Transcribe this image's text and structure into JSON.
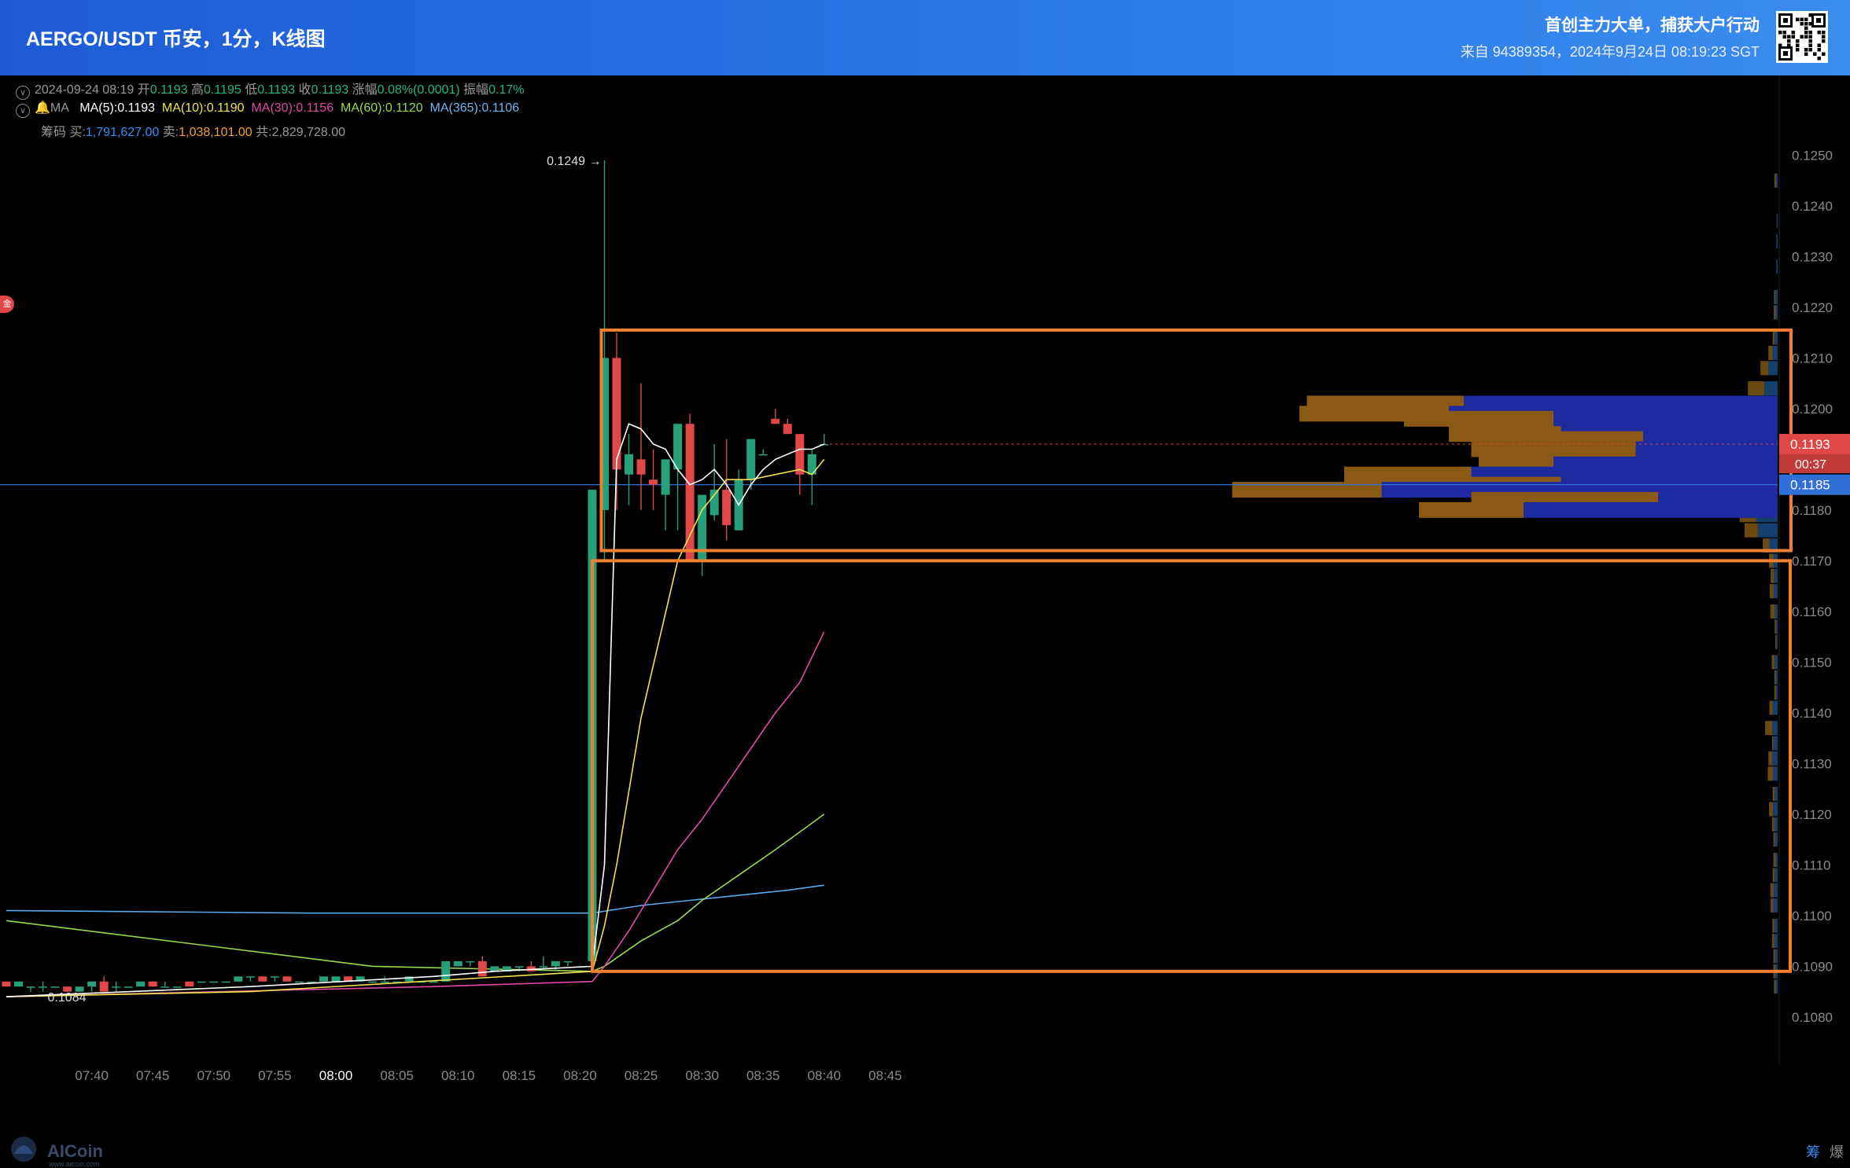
{
  "header": {
    "title": "AERGO/USDT 币安，1分，K线图",
    "promo": "首创主力大单，捕获大户行动",
    "source": "来自 94389354，2024年9月24日 08:19:23 SGT"
  },
  "ohlc": {
    "date": "2024-09-24 08:19",
    "open_label": "开",
    "open": "0.1193",
    "high_label": "高",
    "high": "0.1195",
    "low_label": "低",
    "low": "0.1193",
    "close_label": "收",
    "close": "0.1193",
    "change_label": "涨幅",
    "change": "0.08%(0.0001)",
    "amp_label": "振幅",
    "amp": "0.17%"
  },
  "ma_row": {
    "label": "MA",
    "ma5": "MA(5):0.1193",
    "ma10": "MA(10):0.1190",
    "ma30": "MA(30):0.1156",
    "ma60": "MA(60):0.1120",
    "ma365": "MA(365):0.1106"
  },
  "chips_row": {
    "label": "筹码",
    "buy_label": "买:",
    "buy": "1,791,627.00",
    "sell_label": "卖:",
    "sell": "1,038,101.00",
    "total_label": "共:",
    "total": "2,829,728.00"
  },
  "badge": "金",
  "annotations": {
    "high_label": "0.1249 →",
    "low_label": "0.1084"
  },
  "price_tags": {
    "last": "0.1193",
    "countdown": "00:37",
    "crosshair": "0.1185"
  },
  "footer": {
    "brand": "AICoin",
    "brand_sub": "www.aicoin.com",
    "chip_btn": "筹",
    "liq_btn": "爆"
  },
  "colors": {
    "up": "#26a17b",
    "down": "#e04848",
    "ma5": "#ffffff",
    "ma10": "#f2e24d",
    "ma30": "#e24aa8",
    "ma60": "#9bd84b",
    "ma365": "#5aa8ec",
    "box": "#f08030",
    "vp_buy": "#1e2aa0",
    "vp_sell": "#8a5a14",
    "vp_right_buy": "#14406e",
    "vp_right_sell": "#6b4a12"
  },
  "chart_data": {
    "type": "candlestick",
    "symbol": "AERGO/USDT",
    "interval": "1分",
    "y_ticks": [
      "0.1250",
      "0.1240",
      "0.1230",
      "0.1220",
      "0.1210",
      "0.1200",
      "0.1190",
      "0.1180",
      "0.1170",
      "0.1160",
      "0.1150",
      "0.1140",
      "0.1130",
      "0.1120",
      "0.1110",
      "0.1100",
      "0.1090",
      "0.1080"
    ],
    "x_ticks": [
      "07:40",
      "07:45",
      "07:50",
      "07:55",
      "08:00",
      "08:05",
      "08:10",
      "08:15",
      "08:20",
      "08:25",
      "08:30",
      "08:35",
      "08:40",
      "08:45"
    ],
    "ylim": [
      0.10775,
      0.12558
    ],
    "time_start_minute": 7,
    "candles": [
      [
        0.1087,
        0.1087,
        0.1086,
        0.1086
      ],
      [
        0.1086,
        0.1087,
        0.1086,
        0.1087
      ],
      [
        0.1086,
        0.1086,
        0.1085,
        0.1086
      ],
      [
        0.1086,
        0.1087,
        0.1085,
        0.1086
      ],
      [
        0.1086,
        0.1086,
        0.1086,
        0.1086
      ],
      [
        0.1086,
        0.1086,
        0.1085,
        0.1085
      ],
      [
        0.1085,
        0.1086,
        0.1085,
        0.1086
      ],
      [
        0.1086,
        0.1087,
        0.1085,
        0.1087
      ],
      [
        0.1087,
        0.1088,
        0.1085,
        0.1085
      ],
      [
        0.1086,
        0.1087,
        0.1085,
        0.1086
      ],
      [
        0.1086,
        0.1086,
        0.1086,
        0.1086
      ],
      [
        0.1086,
        0.1087,
        0.1086,
        0.1087
      ],
      [
        0.1087,
        0.1087,
        0.1086,
        0.1086
      ],
      [
        0.1086,
        0.1087,
        0.1086,
        0.1086
      ],
      [
        0.1086,
        0.1086,
        0.1086,
        0.1086
      ],
      [
        0.1087,
        0.1087,
        0.1086,
        0.1086
      ],
      [
        0.1087,
        0.1087,
        0.1087,
        0.1087
      ],
      [
        0.1087,
        0.1087,
        0.1087,
        0.1087
      ],
      [
        0.1087,
        0.1087,
        0.1087,
        0.1087
      ],
      [
        0.1087,
        0.1088,
        0.1087,
        0.1088
      ],
      [
        0.1088,
        0.1088,
        0.1087,
        0.1088
      ],
      [
        0.1088,
        0.1088,
        0.1087,
        0.1087
      ],
      [
        0.1088,
        0.1088,
        0.1087,
        0.1088
      ],
      [
        0.1088,
        0.1088,
        0.1087,
        0.1087
      ],
      [
        0.1087,
        0.1087,
        0.1087,
        0.1087
      ],
      [
        0.1087,
        0.1087,
        0.1087,
        0.1087
      ],
      [
        0.1087,
        0.1088,
        0.1087,
        0.1088
      ],
      [
        0.1087,
        0.1088,
        0.1087,
        0.1088
      ],
      [
        0.1088,
        0.1088,
        0.1087,
        0.1087
      ],
      [
        0.1087,
        0.1088,
        0.1087,
        0.1088
      ],
      [
        0.1087,
        0.1087,
        0.1087,
        0.1087
      ],
      [
        0.1087,
        0.1088,
        0.1087,
        0.1087
      ],
      [
        0.1087,
        0.1087,
        0.1087,
        0.1087
      ],
      [
        0.1087,
        0.1088,
        0.1087,
        0.1088
      ],
      [
        0.1087,
        0.1087,
        0.1087,
        0.1087
      ],
      [
        0.1087,
        0.1087,
        0.1087,
        0.1087
      ],
      [
        0.1087,
        0.1091,
        0.1087,
        0.1091
      ],
      [
        0.109,
        0.1091,
        0.109,
        0.1091
      ],
      [
        0.1091,
        0.1091,
        0.109,
        0.1091
      ],
      [
        0.1091,
        0.1092,
        0.1088,
        0.1088
      ],
      [
        0.1089,
        0.109,
        0.1089,
        0.109
      ],
      [
        0.1089,
        0.109,
        0.1089,
        0.109
      ],
      [
        0.109,
        0.109,
        0.1089,
        0.109
      ],
      [
        0.109,
        0.1091,
        0.1089,
        0.1089
      ],
      [
        0.109,
        0.1092,
        0.1089,
        0.109
      ],
      [
        0.109,
        0.1091,
        0.1089,
        0.1091
      ],
      [
        0.1091,
        0.1091,
        0.109,
        0.1091
      ],
      [
        0.109,
        0.109,
        0.109,
        0.109
      ],
      [
        0.1091,
        0.1184,
        0.109,
        0.1184
      ],
      [
        0.118,
        0.1249,
        0.117,
        0.121
      ],
      [
        0.121,
        0.1215,
        0.118,
        0.1188
      ],
      [
        0.1187,
        0.1195,
        0.1181,
        0.1191
      ],
      [
        0.119,
        0.1205,
        0.118,
        0.1187
      ],
      [
        0.1186,
        0.1192,
        0.118,
        0.1185
      ],
      [
        0.1183,
        0.119,
        0.1176,
        0.119
      ],
      [
        0.1188,
        0.1197,
        0.1176,
        0.1197
      ],
      [
        0.1197,
        0.1199,
        0.117,
        0.117
      ],
      [
        0.117,
        0.1183,
        0.1167,
        0.1183
      ],
      [
        0.1179,
        0.1193,
        0.1178,
        0.1184
      ],
      [
        0.1184,
        0.1194,
        0.1174,
        0.1177
      ],
      [
        0.1176,
        0.1188,
        0.1176,
        0.1186
      ],
      [
        0.1186,
        0.1193,
        0.1184,
        0.1194
      ],
      [
        0.1191,
        0.1192,
        0.1191,
        0.1191
      ],
      [
        0.1198,
        0.12,
        0.1197,
        0.1197
      ],
      [
        0.1197,
        0.1198,
        0.1195,
        0.1195
      ],
      [
        0.1195,
        0.1195,
        0.1183,
        0.1187
      ],
      [
        0.1187,
        0.1192,
        0.1181,
        0.1191
      ],
      [
        0.1193,
        0.1195,
        0.1193,
        0.1193
      ]
    ],
    "ma5": [
      [
        0,
        0.1084
      ],
      [
        20,
        0.1086
      ],
      [
        35,
        0.1088
      ],
      [
        40,
        0.1089
      ],
      [
        48,
        0.109
      ],
      [
        49,
        0.111
      ],
      [
        50,
        0.119
      ],
      [
        51,
        0.1197
      ],
      [
        52,
        0.1196
      ],
      [
        53,
        0.1193
      ],
      [
        54,
        0.1192
      ],
      [
        55,
        0.1188
      ],
      [
        56,
        0.1185
      ],
      [
        57,
        0.1186
      ],
      [
        58,
        0.1188
      ],
      [
        59,
        0.1185
      ],
      [
        60,
        0.1181
      ],
      [
        61,
        0.1185
      ],
      [
        62,
        0.1188
      ],
      [
        63,
        0.119
      ],
      [
        64,
        0.1191
      ],
      [
        65,
        0.1192
      ],
      [
        66,
        0.1192
      ],
      [
        67,
        0.1193
      ]
    ],
    "ma10": [
      [
        0,
        0.1084
      ],
      [
        20,
        0.1085
      ],
      [
        48,
        0.1089
      ],
      [
        49,
        0.1098
      ],
      [
        50,
        0.111
      ],
      [
        52,
        0.1139
      ],
      [
        55,
        0.117
      ],
      [
        57,
        0.118
      ],
      [
        59,
        0.1186
      ],
      [
        61,
        0.1186
      ],
      [
        63,
        0.1187
      ],
      [
        65,
        0.1188
      ],
      [
        66,
        0.1187
      ],
      [
        67,
        0.119
      ]
    ],
    "ma30": [
      [
        0,
        0.1084
      ],
      [
        35,
        0.1086
      ],
      [
        48,
        0.1087
      ],
      [
        49,
        0.109
      ],
      [
        51,
        0.1097
      ],
      [
        53,
        0.1105
      ],
      [
        55,
        0.1113
      ],
      [
        57,
        0.1119
      ],
      [
        59,
        0.1126
      ],
      [
        61,
        0.1133
      ],
      [
        63,
        0.114
      ],
      [
        65,
        0.1146
      ],
      [
        67,
        0.1156
      ]
    ],
    "ma60": [
      [
        0,
        0.1099
      ],
      [
        30,
        0.109
      ],
      [
        48,
        0.1089
      ],
      [
        49,
        0.109
      ],
      [
        52,
        0.1095
      ],
      [
        55,
        0.1099
      ],
      [
        57,
        0.1103
      ],
      [
        60,
        0.1108
      ],
      [
        63,
        0.1113
      ],
      [
        65,
        0.11165
      ],
      [
        67,
        0.112
      ]
    ],
    "ma365": [
      [
        0,
        0.1101
      ],
      [
        25,
        0.11005
      ],
      [
        48,
        0.11005
      ],
      [
        52,
        0.1102
      ],
      [
        56,
        0.1103
      ],
      [
        60,
        0.1104
      ],
      [
        64,
        0.1105
      ],
      [
        67,
        0.1106
      ]
    ],
    "volume_profile": [
      [
        0.1201,
        0.42,
        0.21
      ],
      [
        0.1199,
        0.44,
        0.2
      ],
      [
        0.1198,
        0.3,
        0.2
      ],
      [
        0.1195,
        0.29,
        0.15
      ],
      [
        0.1194,
        0.18,
        0.2
      ],
      [
        0.1192,
        0.19,
        0.22
      ],
      [
        0.1189,
        0.3,
        0.1
      ],
      [
        0.1187,
        0.41,
        0.17
      ],
      [
        0.1185,
        0.29,
        0.23
      ],
      [
        0.1184,
        0.53,
        0.2
      ],
      [
        0.1182,
        0.16,
        0.25
      ],
      [
        0.118,
        0.34,
        0.14
      ]
    ],
    "right_profile": [
      [
        0.1245,
        0.5,
        0.5
      ],
      [
        0.1237,
        0.3,
        0.0
      ],
      [
        0.1233,
        0.4,
        0.0
      ],
      [
        0.1228,
        0.4,
        0.0
      ],
      [
        0.1222,
        0.7,
        0.4
      ],
      [
        0.1219,
        0.6,
        0.6
      ],
      [
        0.1214,
        0.9,
        0.6
      ],
      [
        0.1211,
        1.5,
        1.3
      ],
      [
        0.1208,
        2.8,
        2.4
      ],
      [
        0.1204,
        4.0,
        5.0
      ],
      [
        0.1201,
        4.5,
        6.0
      ],
      [
        0.1198,
        5.0,
        5.5
      ],
      [
        0.1195,
        5.5,
        6.5
      ],
      [
        0.1192,
        6.0,
        6.5
      ],
      [
        0.1188,
        6.5,
        7.0
      ],
      [
        0.1185,
        7.0,
        8.0
      ],
      [
        0.1182,
        6.0,
        5.5
      ],
      [
        0.1179,
        6.5,
        5.0
      ],
      [
        0.1176,
        6.0,
        4.0
      ],
      [
        0.1173,
        2.5,
        2.0
      ],
      [
        0.117,
        1.3,
        1.3
      ],
      [
        0.1167,
        1.1,
        1.0
      ],
      [
        0.1164,
        1.2,
        1.2
      ],
      [
        0.116,
        0.8,
        1.4
      ],
      [
        0.1157,
        0.5,
        0.4
      ],
      [
        0.1154,
        0.4,
        0.3
      ],
      [
        0.115,
        0.9,
        0.9
      ],
      [
        0.1147,
        0.6,
        0.4
      ],
      [
        0.1144,
        0.5,
        0.5
      ],
      [
        0.1141,
        1.5,
        1.0
      ],
      [
        0.1137,
        1.6,
        2.2
      ],
      [
        0.1134,
        1.3,
        0.4
      ],
      [
        0.1131,
        1.6,
        1.2
      ],
      [
        0.1128,
        1.4,
        1.6
      ],
      [
        0.1124,
        0.9,
        0.6
      ],
      [
        0.1121,
        1.4,
        1.2
      ],
      [
        0.1118,
        1.0,
        0.7
      ],
      [
        0.1115,
        0.8,
        0.5
      ],
      [
        0.1111,
        0.6,
        0.7
      ],
      [
        0.1108,
        0.9,
        0.6
      ],
      [
        0.1105,
        1.2,
        1.0
      ],
      [
        0.1102,
        1.3,
        0.8
      ],
      [
        0.1098,
        1.0,
        0.6
      ],
      [
        0.1095,
        1.0,
        0.7
      ],
      [
        0.1092,
        0.8,
        0.5
      ],
      [
        0.1089,
        0.7,
        0.6
      ],
      [
        0.1086,
        0.6,
        0.5
      ]
    ]
  }
}
